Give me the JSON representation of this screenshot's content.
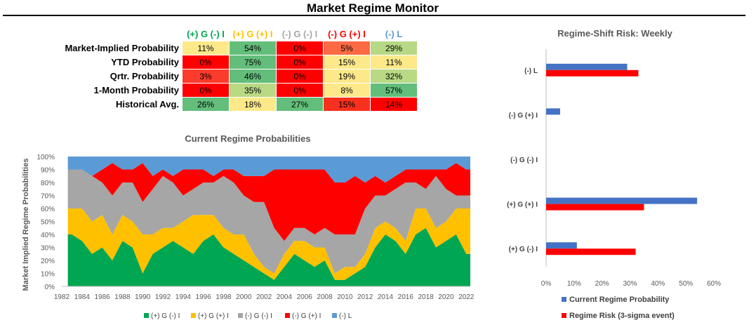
{
  "title": "Market Regime Monitor",
  "regimes": [
    "(+) G (-) I",
    "(+) G (+) I",
    "(-) G (-) I",
    "(-) G (+) I",
    "(-) L"
  ],
  "regime_colors": [
    "#00a651",
    "#ffc000",
    "#a6a6a6",
    "#ff0000",
    "#5b9bd5"
  ],
  "heading_colors": [
    "#00a651",
    "#ffc000",
    "#a6a6a6",
    "#ff0000",
    "#5b9bd5"
  ],
  "table": {
    "rows": [
      {
        "label": "Market-Implied Probability",
        "cells": [
          "11%",
          "54%",
          "0%",
          "5%",
          "29%"
        ],
        "colors": [
          "#fde98a",
          "#63be7b",
          "#ff0000",
          "#fc6a45",
          "#b7d884"
        ]
      },
      {
        "label": "YTD Probability",
        "cells": [
          "0%",
          "75%",
          "0%",
          "15%",
          "11%"
        ],
        "colors": [
          "#ff0000",
          "#63be7b",
          "#ff0000",
          "#fde98a",
          "#fde98a"
        ]
      },
      {
        "label": "Qrtr. Probability",
        "cells": [
          "3%",
          "46%",
          "0%",
          "19%",
          "32%"
        ],
        "colors": [
          "#fb3b2b",
          "#63be7b",
          "#ff0000",
          "#fde98a",
          "#b9d985"
        ]
      },
      {
        "label": "1-Month Probability",
        "cells": [
          "0%",
          "35%",
          "0%",
          "8%",
          "57%"
        ],
        "colors": [
          "#ff0000",
          "#b9d985",
          "#ff0000",
          "#fde98a",
          "#63be7b"
        ]
      },
      {
        "label": "Historical Avg.",
        "cells": [
          "26%",
          "18%",
          "27%",
          "15%",
          "14%"
        ],
        "colors": [
          "#63be7b",
          "#fde98a",
          "#63be7b",
          "#f8301e",
          "#ff0000"
        ]
      }
    ]
  },
  "chart_data": [
    {
      "type": "area",
      "title": "Current Regime Probabilities",
      "ylabel": "Market Implied Regime Probabilities",
      "xlabel": "",
      "stacked": true,
      "ylim": [
        0,
        100
      ],
      "yticks": [
        "0%",
        "10%",
        "20%",
        "30%",
        "40%",
        "50%",
        "60%",
        "70%",
        "80%",
        "90%",
        "100%"
      ],
      "xticks": [
        "1982",
        "1984",
        "1986",
        "1988",
        "1990",
        "1992",
        "1994",
        "1996",
        "1998",
        "2000",
        "2002",
        "2004",
        "2006",
        "2008",
        "2010",
        "2012",
        "2014",
        "2016",
        "2018",
        "2020",
        "2022"
      ],
      "x": [
        1983,
        1984,
        1985,
        1986,
        1987,
        1988,
        1989,
        1990,
        1991,
        1992,
        1993,
        1994,
        1995,
        1996,
        1997,
        1998,
        1999,
        2000,
        2001,
        2002,
        2003,
        2004,
        2005,
        2006,
        2007,
        2008,
        2009,
        2010,
        2011,
        2012,
        2013,
        2014,
        2015,
        2016,
        2017,
        2018,
        2019,
        2020,
        2021,
        2022
      ],
      "series": [
        {
          "name": "(+) G (-) I",
          "values": [
            40,
            35,
            25,
            30,
            20,
            35,
            30,
            10,
            25,
            30,
            35,
            30,
            25,
            35,
            40,
            30,
            25,
            20,
            15,
            10,
            5,
            15,
            25,
            20,
            15,
            20,
            5,
            5,
            10,
            15,
            30,
            40,
            35,
            25,
            40,
            45,
            30,
            35,
            40,
            25
          ]
        },
        {
          "name": "(+) G (+) I",
          "values": [
            20,
            25,
            25,
            25,
            20,
            20,
            20,
            30,
            15,
            15,
            10,
            20,
            30,
            20,
            15,
            15,
            15,
            20,
            10,
            5,
            5,
            10,
            10,
            15,
            15,
            10,
            5,
            10,
            5,
            10,
            15,
            10,
            10,
            10,
            20,
            15,
            15,
            15,
            20,
            35
          ]
        },
        {
          "name": "(-) G (-) I",
          "values": [
            30,
            30,
            35,
            25,
            30,
            25,
            30,
            25,
            35,
            40,
            35,
            20,
            20,
            25,
            25,
            40,
            40,
            30,
            40,
            50,
            35,
            10,
            10,
            10,
            10,
            15,
            30,
            25,
            25,
            35,
            25,
            20,
            30,
            45,
            20,
            15,
            40,
            25,
            10,
            10
          ]
        },
        {
          "name": "(-) G (+) I",
          "values": [
            0,
            0,
            0,
            10,
            25,
            10,
            10,
            30,
            10,
            5,
            5,
            20,
            15,
            10,
            5,
            5,
            10,
            15,
            20,
            20,
            45,
            55,
            45,
            45,
            50,
            45,
            40,
            40,
            45,
            20,
            15,
            10,
            10,
            10,
            10,
            15,
            5,
            15,
            25,
            20
          ]
        },
        {
          "name": "(-) L",
          "values": [
            10,
            10,
            15,
            10,
            5,
            10,
            10,
            5,
            15,
            10,
            15,
            10,
            10,
            10,
            15,
            10,
            10,
            15,
            15,
            15,
            10,
            10,
            10,
            10,
            10,
            10,
            20,
            20,
            15,
            20,
            15,
            20,
            15,
            10,
            10,
            10,
            10,
            10,
            5,
            10
          ]
        }
      ],
      "legend": "bottom"
    },
    {
      "type": "bar",
      "orientation": "horizontal",
      "title": "Regime-Shift Risk: Weekly",
      "categories": [
        "(-) L",
        "(-) G (+) I",
        "(-) G (-) I",
        "(+) G (+) I",
        "(+) G (-) I"
      ],
      "xlim": [
        0,
        60
      ],
      "xticks": [
        "0%",
        "10%",
        "20%",
        "30%",
        "40%",
        "50%",
        "60%"
      ],
      "series": [
        {
          "name": "Current Regime Probability",
          "color": "#4472c4",
          "values": [
            29,
            5,
            0,
            54,
            11
          ]
        },
        {
          "name": "Regime Risk (3-sigma event)",
          "color": "#ff0000",
          "values": [
            33,
            0,
            0,
            35,
            32
          ]
        }
      ],
      "legend": "bottom"
    }
  ]
}
